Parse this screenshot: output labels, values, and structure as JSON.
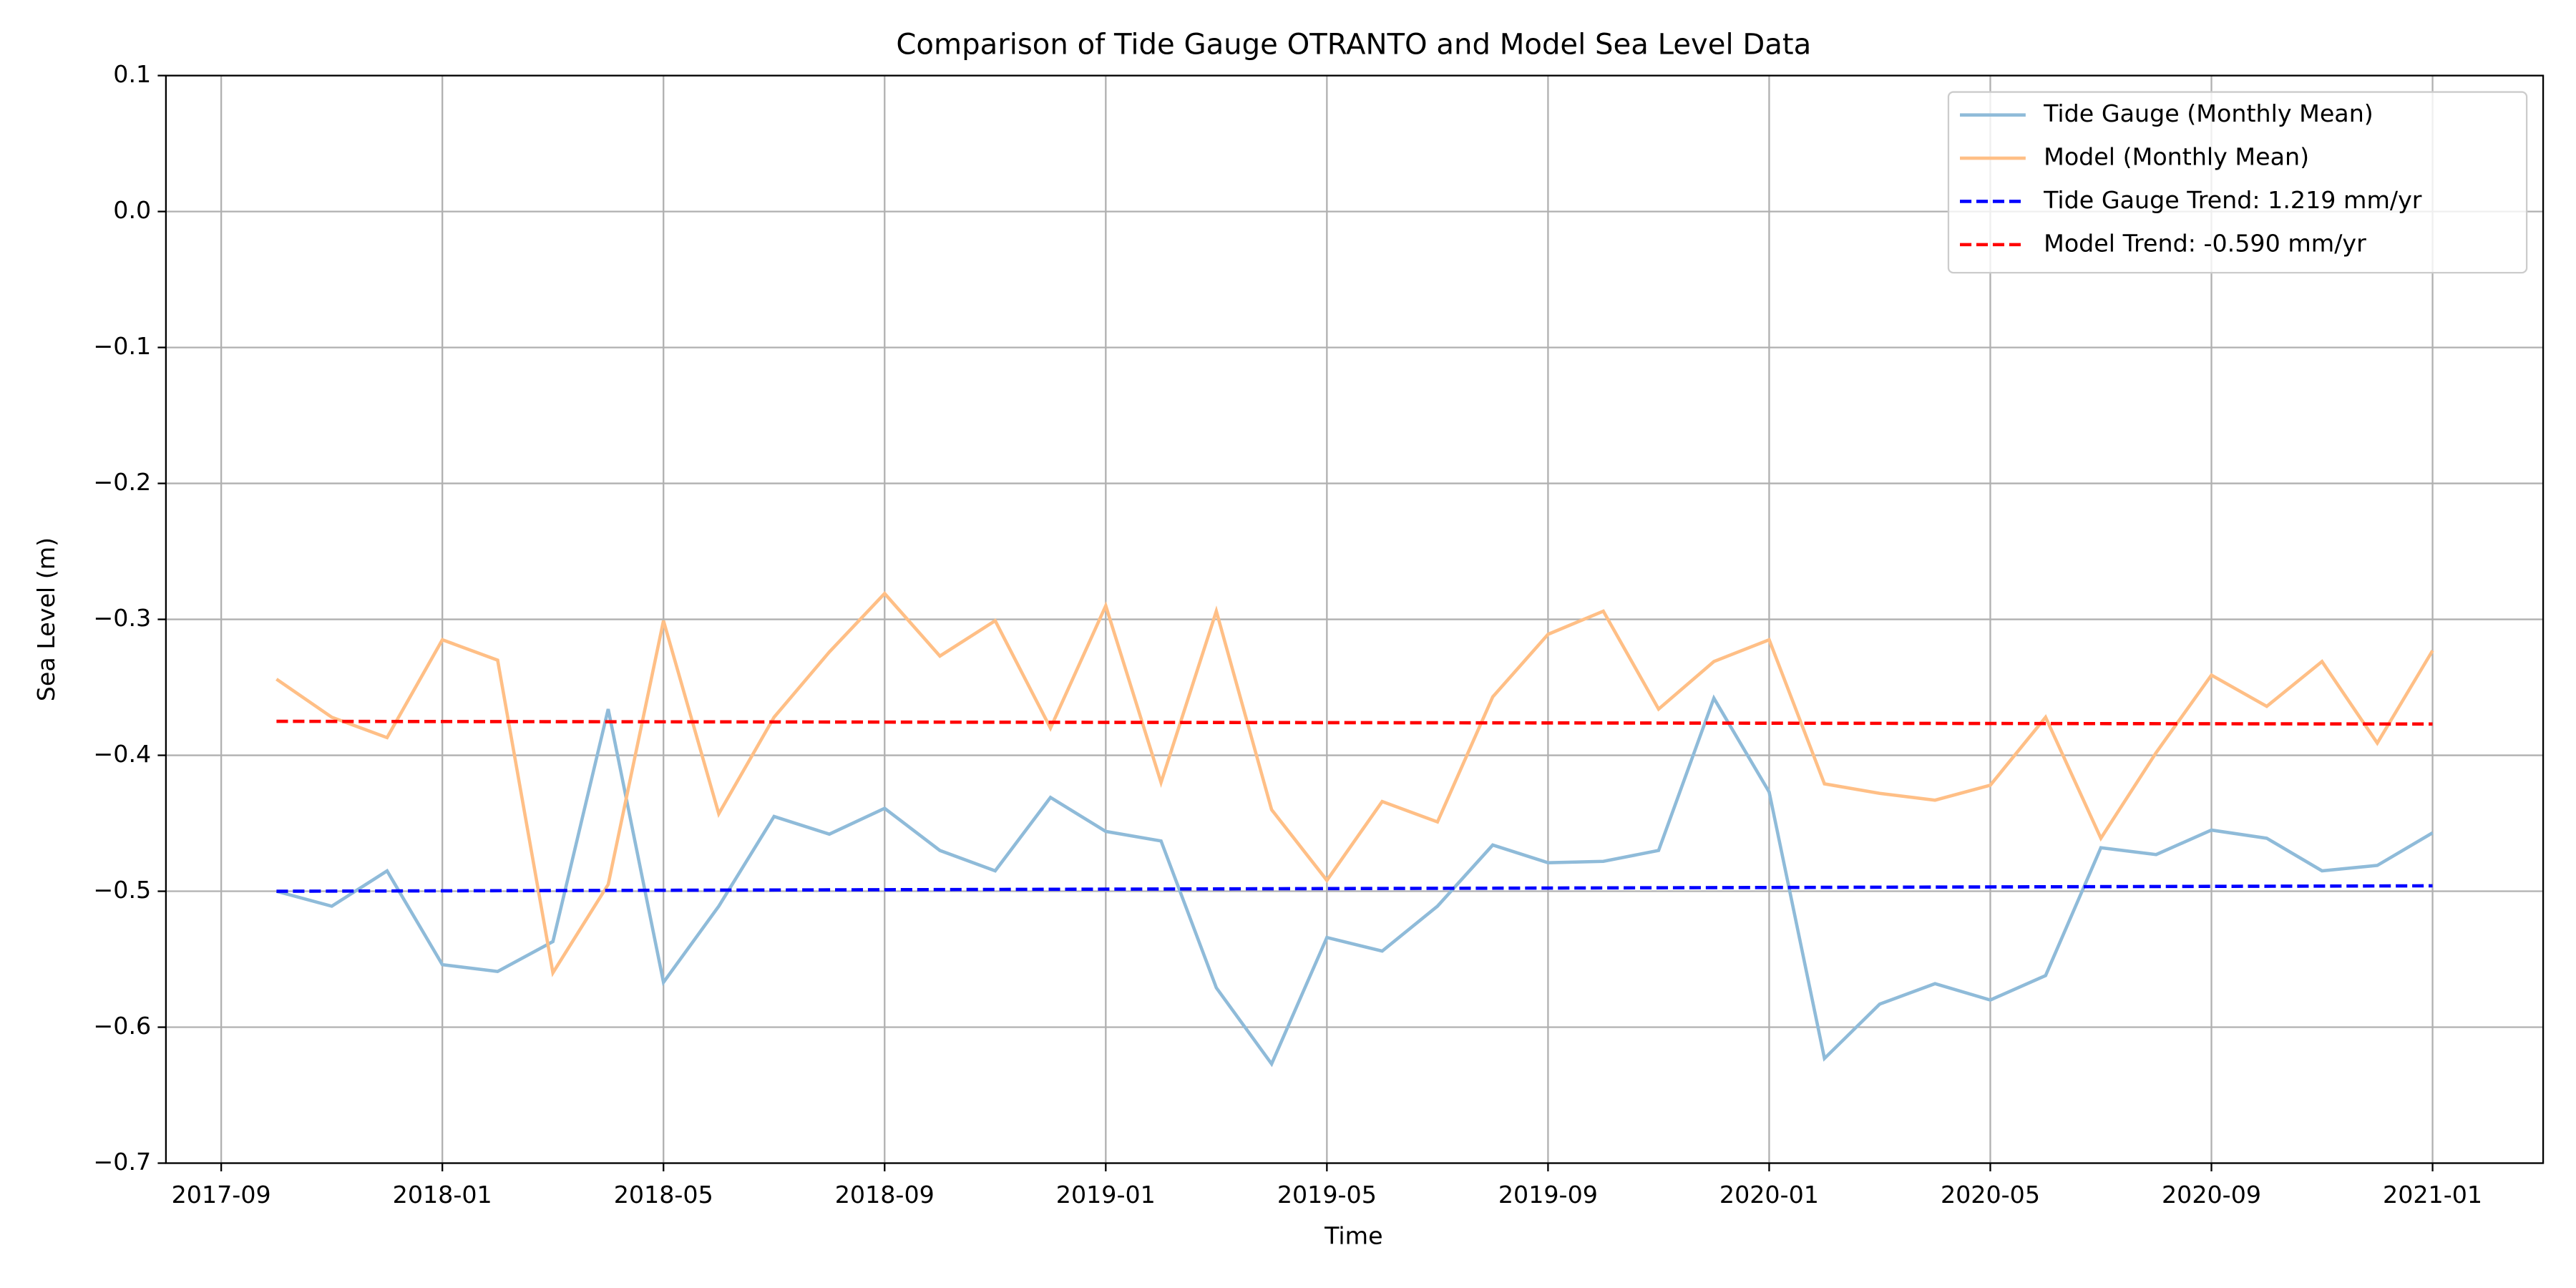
{
  "chart_data": {
    "type": "line",
    "title": "Comparison of Tide Gauge OTRANTO and Model Sea Level Data",
    "xlabel": "Time",
    "ylabel": "Sea Level (m)",
    "x": [
      "2017-10",
      "2017-11",
      "2017-12",
      "2018-01",
      "2018-02",
      "2018-03",
      "2018-04",
      "2018-05",
      "2018-06",
      "2018-07",
      "2018-08",
      "2018-09",
      "2018-10",
      "2018-11",
      "2018-12",
      "2019-01",
      "2019-02",
      "2019-03",
      "2019-04",
      "2019-05",
      "2019-06",
      "2019-07",
      "2019-08",
      "2019-09",
      "2019-10",
      "2019-11",
      "2019-12",
      "2020-01",
      "2020-02",
      "2020-03",
      "2020-04",
      "2020-05",
      "2020-06",
      "2020-07",
      "2020-08",
      "2020-09",
      "2020-10",
      "2020-11",
      "2020-12",
      "2021-01"
    ],
    "series": [
      {
        "name": "Tide Gauge (Monthly Mean)",
        "color": "#8fbbd9",
        "linestyle": "solid",
        "values": [
          -0.5,
          -0.511,
          -0.485,
          -0.554,
          -0.559,
          -0.537,
          -0.366,
          -0.567,
          -0.511,
          -0.445,
          -0.458,
          -0.439,
          -0.47,
          -0.485,
          -0.431,
          -0.456,
          -0.463,
          -0.571,
          -0.627,
          -0.534,
          -0.544,
          -0.511,
          -0.466,
          -0.479,
          -0.478,
          -0.47,
          -0.358,
          -0.427,
          -0.623,
          -0.583,
          -0.568,
          -0.58,
          -0.562,
          -0.468,
          -0.473,
          -0.455,
          -0.461,
          -0.485,
          -0.481,
          -0.457
        ]
      },
      {
        "name": "Model (Monthly Mean)",
        "color": "#ffbf86",
        "linestyle": "solid",
        "values": [
          -0.344,
          -0.372,
          -0.387,
          -0.315,
          -0.33,
          -0.56,
          -0.495,
          -0.301,
          -0.443,
          -0.372,
          -0.324,
          -0.281,
          -0.327,
          -0.301,
          -0.38,
          -0.29,
          -0.42,
          -0.294,
          -0.44,
          -0.492,
          -0.434,
          -0.449,
          -0.357,
          -0.311,
          -0.294,
          -0.366,
          -0.331,
          -0.315,
          -0.421,
          -0.428,
          -0.433,
          -0.422,
          -0.372,
          -0.461,
          -0.398,
          -0.341,
          -0.364,
          -0.331,
          -0.391,
          -0.323
        ]
      },
      {
        "name": "Tide Gauge Trend: 1.219 mm/yr",
        "color": "#0000ff",
        "linestyle": "dashed",
        "x": [
          "2017-10",
          "2021-01"
        ],
        "values": [
          -0.5,
          -0.496
        ]
      },
      {
        "name": "Model Trend: -0.590 mm/yr",
        "color": "#ff0000",
        "linestyle": "dashed",
        "x": [
          "2017-10",
          "2021-01"
        ],
        "values": [
          -0.375,
          -0.377
        ]
      }
    ],
    "xlim": [
      "2017-08",
      "2021-03"
    ],
    "xticks": [
      "2017-09",
      "2018-01",
      "2018-05",
      "2018-09",
      "2019-01",
      "2019-05",
      "2019-09",
      "2020-01",
      "2020-05",
      "2020-09",
      "2021-01"
    ],
    "ylim": [
      -0.7,
      0.1
    ],
    "yticks": [
      {
        "value": -0.7,
        "label": "−0.7"
      },
      {
        "value": -0.6,
        "label": "−0.6"
      },
      {
        "value": -0.5,
        "label": "−0.5"
      },
      {
        "value": -0.4,
        "label": "−0.4"
      },
      {
        "value": -0.3,
        "label": "−0.3"
      },
      {
        "value": -0.2,
        "label": "−0.2"
      },
      {
        "value": -0.1,
        "label": "−0.1"
      },
      {
        "value": 0,
        "label": "0.0"
      },
      0.1
    ],
    "grid": true,
    "legend": "upper right"
  }
}
